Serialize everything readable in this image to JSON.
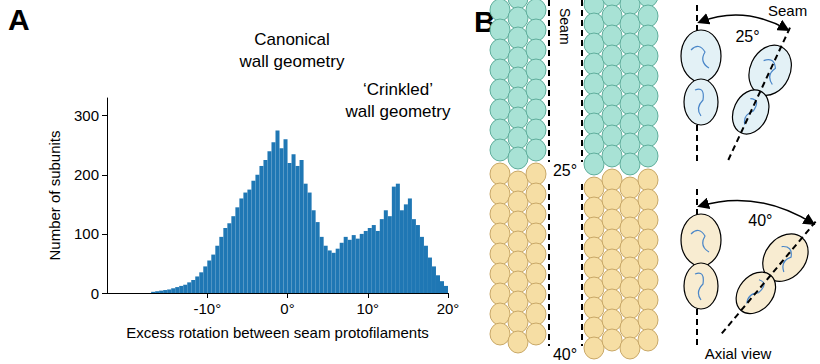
{
  "chart_data": {
    "type": "histogram",
    "panel_label": "A",
    "x_label": "Excess rotation between seam protofilaments",
    "y_label": "Number of subunits",
    "annotations": [
      "Canonical\nwall geometry",
      "‘Crinkled’\nwall geometry"
    ],
    "bins": [
      -17,
      -16.5,
      -16,
      -15.5,
      -15,
      -14.5,
      -14,
      -13.5,
      -13,
      -12.5,
      -12,
      -11.5,
      -11,
      -10.5,
      -10,
      -9.5,
      -9,
      -8.5,
      -8,
      -7.5,
      -7,
      -6.5,
      -6,
      -5.5,
      -5,
      -4.5,
      -4,
      -3.5,
      -3,
      -2.5,
      -2,
      -1.5,
      -1,
      -0.5,
      0,
      0.5,
      1,
      1.5,
      2,
      2.5,
      3,
      3.5,
      4,
      4.5,
      5,
      5.5,
      6,
      6.5,
      7,
      7.5,
      8,
      8.5,
      9,
      9.5,
      10,
      10.5,
      11,
      11.5,
      12,
      12.5,
      13,
      13.5,
      14,
      14.5,
      15,
      15.5,
      16,
      16.5,
      17,
      17.5,
      18,
      18.5,
      19,
      19.5,
      20
    ],
    "values": [
      2,
      3,
      4,
      5,
      6,
      8,
      10,
      12,
      14,
      18,
      22,
      28,
      35,
      45,
      55,
      65,
      80,
      95,
      110,
      118,
      130,
      145,
      160,
      170,
      175,
      190,
      200,
      215,
      225,
      240,
      255,
      275,
      245,
      260,
      220,
      235,
      215,
      225,
      185,
      170,
      140,
      120,
      95,
      80,
      72,
      68,
      75,
      85,
      95,
      90,
      98,
      92,
      100,
      105,
      110,
      115,
      105,
      125,
      140,
      130,
      180,
      185,
      140,
      150,
      160,
      125,
      115,
      95,
      80,
      60,
      45,
      30,
      20,
      12
    ],
    "color": "#1f77b4",
    "xlim": [
      -22.5,
      20
    ],
    "xticks": [
      {
        "value": -10,
        "label": "-10°"
      },
      {
        "value": 0,
        "label": "0°"
      },
      {
        "value": 10,
        "label": "10°"
      },
      {
        "value": 20,
        "label": "20°"
      }
    ],
    "ylim": [
      0,
      330
    ],
    "yticks": [
      0,
      100,
      200,
      300
    ],
    "grid": false
  },
  "panel_b": {
    "panel_label": "B",
    "seam": "Seam",
    "axial_view": "Axial view",
    "views": [
      {
        "angle": 25,
        "angle_label": "25°"
      },
      {
        "angle": 40,
        "angle_label": "40°"
      }
    ]
  }
}
